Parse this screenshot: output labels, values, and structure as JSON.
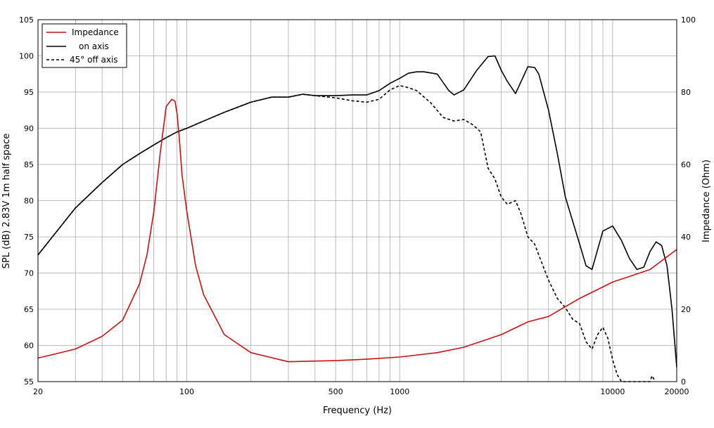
{
  "chart_data": {
    "type": "line",
    "x_scale": "log",
    "xlabel": "Frequency (Hz)",
    "ylabel_left": "SPL (dB)  2.83V  1m  half space",
    "ylabel_right": "Impedance (Ohm)",
    "xlim": [
      20,
      20000
    ],
    "ylim_left": [
      55,
      105
    ],
    "ylim_right": [
      0,
      100
    ],
    "x_ticks": [
      20,
      100,
      500,
      1000,
      10000,
      20000
    ],
    "x_tick_labels": [
      "20",
      "100",
      "500",
      "1000",
      "10000",
      "20000"
    ],
    "y_left_ticks": [
      55,
      60,
      65,
      70,
      75,
      80,
      85,
      90,
      95,
      100,
      105
    ],
    "y_left_tick_labels": [
      "55",
      "60",
      "65",
      "70",
      "75",
      "80",
      "85",
      "90",
      "95",
      "100",
      "105"
    ],
    "y_right_ticks": [
      0,
      20,
      40,
      60,
      80,
      100
    ],
    "y_right_tick_labels": [
      "0",
      "20",
      "40",
      "60",
      "80",
      "100"
    ],
    "grid": true,
    "legend": {
      "position": "top-left"
    },
    "colors": {
      "impedance": "#cc1111",
      "on_axis": "#000000",
      "off_axis": "#000000",
      "grid": "#aaaaaa"
    },
    "series": [
      {
        "name": "Impedance",
        "axis": "right",
        "style": "solid",
        "x": [
          20,
          30,
          40,
          50,
          60,
          65,
          70,
          75,
          80,
          85,
          88,
          90,
          92,
          95,
          100,
          110,
          120,
          150,
          200,
          300,
          500,
          700,
          1000,
          1500,
          2000,
          3000,
          4000,
          5000,
          7000,
          10000,
          15000,
          20000
        ],
        "y": [
          6.5,
          9,
          12.5,
          17,
          27,
          35,
          47,
          63,
          76,
          78,
          77.5,
          74,
          68,
          57,
          47,
          32,
          24,
          13,
          8,
          5.5,
          5.8,
          6.2,
          6.8,
          8,
          9.5,
          13,
          16.5,
          18,
          23,
          27.5,
          31,
          36.5
        ]
      },
      {
        "name": "on axis",
        "axis": "left",
        "style": "solid",
        "x": [
          20,
          30,
          40,
          50,
          60,
          70,
          80,
          90,
          100,
          120,
          150,
          200,
          250,
          300,
          350,
          400,
          500,
          600,
          700,
          800,
          900,
          1000,
          1100,
          1200,
          1300,
          1500,
          1700,
          1800,
          2000,
          2300,
          2600,
          2800,
          3000,
          3200,
          3500,
          4000,
          4300,
          4500,
          5000,
          5500,
          6000,
          7000,
          7500,
          8000,
          9000,
          10000,
          11000,
          12000,
          13000,
          14000,
          15000,
          16000,
          17000,
          18000,
          19000,
          20000
        ],
        "y": [
          72.5,
          79,
          82.5,
          85,
          86.5,
          87.7,
          88.7,
          89.5,
          90,
          91,
          92.2,
          93.6,
          94.3,
          94.3,
          94.7,
          94.5,
          94.5,
          94.6,
          94.6,
          95.2,
          96.2,
          96.9,
          97.6,
          97.8,
          97.8,
          97.5,
          95.2,
          94.6,
          95.3,
          98,
          99.9,
          100,
          98,
          96.5,
          94.8,
          98.5,
          98.4,
          97.5,
          92.5,
          86.5,
          80.5,
          74,
          71,
          70.5,
          75.8,
          76.5,
          74.5,
          72,
          70.5,
          70.8,
          73,
          74.3,
          73.8,
          71,
          65,
          57
        ]
      },
      {
        "name": "45° off axis",
        "axis": "left",
        "style": "dashed",
        "x": [
          20,
          30,
          40,
          50,
          60,
          70,
          80,
          90,
          100,
          120,
          150,
          200,
          250,
          300,
          350,
          400,
          500,
          600,
          700,
          800,
          900,
          1000,
          1100,
          1200,
          1400,
          1600,
          1800,
          2000,
          2200,
          2400,
          2600,
          2800,
          3000,
          3200,
          3500,
          3700,
          4000,
          4300,
          4500,
          5000,
          5500,
          6000,
          6500,
          7000,
          7500,
          8000,
          8500,
          9000,
          9500,
          10000,
          10500,
          11000,
          11500,
          15000,
          15300,
          15600,
          15900
        ],
        "y": [
          72.5,
          79,
          82.5,
          85,
          86.5,
          87.7,
          88.7,
          89.5,
          90,
          91,
          92.2,
          93.6,
          94.3,
          94.3,
          94.7,
          94.5,
          94.2,
          93.8,
          93.6,
          94,
          95.3,
          95.9,
          95.6,
          95.2,
          93.5,
          91.5,
          91,
          91.2,
          90.5,
          89.5,
          84.5,
          83,
          80.5,
          79.5,
          80,
          78.3,
          75,
          74,
          72.5,
          69,
          66.5,
          65.2,
          63.6,
          63,
          60.5,
          59.5,
          61.5,
          62.5,
          61,
          58,
          56,
          55,
          55,
          55,
          55.8,
          55.4,
          55
        ]
      }
    ]
  }
}
